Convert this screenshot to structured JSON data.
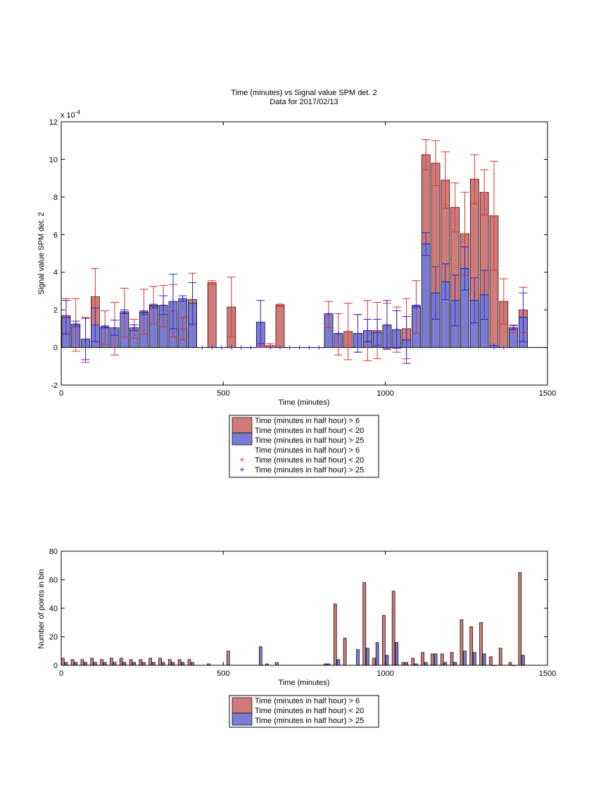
{
  "chart_data": [
    {
      "type": "bar",
      "title": "Time (minutes) vs Signal value SPM det. 2",
      "subtitle": "Data for 2017/02/13",
      "xlabel": "Time (minutes)",
      "ylabel": "Signal value SPM det. 2",
      "y_exponent": "x 10^-4",
      "y_exponent_base": "x 10",
      "y_exponent_power": "-4",
      "xlim": [
        0,
        1500
      ],
      "ylim": [
        -2,
        12
      ],
      "x_ticks": [
        "0",
        "500",
        "1000",
        "1500"
      ],
      "y_ticks": [
        "-2",
        "0",
        "2",
        "4",
        "6",
        "8",
        "10",
        "12"
      ],
      "grid": false,
      "legend_position": "below",
      "colors": {
        "red": "#d07a7a",
        "blue": "#7b7bd4",
        "red_err": "#e03030",
        "blue_err": "#2a2ad0"
      },
      "legend": [
        "Time (minutes in half hour) > 6",
        "Time (minutes in half hour) < 20",
        "Time (minutes in half hour) > 25",
        "Time (minutes in half hour) > 6",
        "Time (minutes in half hour) < 20",
        "Time (minutes in half hour) > 25"
      ],
      "series": [
        {
          "kind": "red-bars",
          "x": [
            15,
            45,
            75,
            105,
            135,
            165,
            195,
            225,
            255,
            285,
            315,
            345,
            375,
            405,
            465,
            525,
            615,
            645,
            675,
            825,
            855,
            885,
            915,
            945,
            975,
            1005,
            1035,
            1065,
            1095,
            1125,
            1155,
            1185,
            1215,
            1245,
            1275,
            1305,
            1335,
            1365,
            1395,
            1425
          ],
          "values": [
            1.7,
            1.2,
            0.4,
            2.7,
            1.05,
            1.0,
            1.85,
            1.0,
            1.9,
            2.25,
            2.2,
            1.95,
            1.0,
            2.55,
            3.45,
            2.15,
            0.1,
            0.1,
            2.25,
            1.75,
            0.7,
            0.85,
            0.75,
            0.9,
            0.9,
            1.15,
            0.95,
            1.0,
            2.15,
            10.25,
            9.8,
            8.9,
            7.45,
            6.05,
            8.95,
            8.25,
            7.0,
            2.45,
            1.0,
            2.0
          ],
          "err": [
            0.9,
            1.4,
            1.2,
            1.5,
            0.9,
            1.4,
            1.3,
            0.5,
            1.2,
            1.0,
            1.1,
            1.4,
            0.6,
            1.4,
            0.1,
            1.6,
            0.1,
            0.1,
            0.05,
            0.7,
            1.1,
            1.5,
            1.0,
            1.6,
            1.5,
            1.2,
            1.2,
            1.6,
            1.4,
            0.8,
            1.2,
            1.5,
            1.3,
            2.2,
            1.3,
            1.2,
            2.9,
            1.2,
            0.2,
            1.2
          ]
        },
        {
          "kind": "blue-bars",
          "x": [
            15,
            45,
            75,
            105,
            135,
            165,
            195,
            225,
            255,
            285,
            315,
            345,
            375,
            405,
            615,
            825,
            855,
            915,
            945,
            975,
            1005,
            1035,
            1065,
            1095,
            1125,
            1155,
            1185,
            1215,
            1245,
            1275,
            1305,
            1335,
            1395,
            1425
          ],
          "values": [
            1.6,
            1.25,
            0.45,
            1.2,
            1.1,
            1.05,
            1.9,
            1.05,
            1.85,
            2.2,
            2.25,
            2.45,
            2.6,
            2.35,
            1.35,
            1.8,
            0.75,
            0.75,
            0.9,
            0.8,
            1.2,
            0.95,
            0.4,
            2.2,
            5.5,
            2.9,
            3.5,
            2.5,
            4.2,
            2.5,
            2.8,
            0.1,
            1.05,
            1.6
          ],
          "err": [
            0.9,
            0.15,
            1.1,
            0.9,
            0.05,
            0.4,
            0.1,
            0.15,
            0.1,
            0.1,
            0.5,
            1.45,
            0.15,
            1.1,
            1.15,
            0.0,
            0.0,
            1.0,
            0.6,
            0.7,
            1.3,
            1.0,
            1.25,
            0.05,
            0.6,
            1.4,
            0.95,
            1.35,
            1.15,
            1.2,
            1.3,
            0.0,
            0.1,
            1.3
          ],
          "zero_markers_x": [
            435,
            465,
            495,
            525,
            555,
            585,
            645,
            675,
            705,
            735,
            765,
            795,
            1335,
            1365
          ]
        }
      ]
    },
    {
      "type": "bar",
      "xlabel": "Time (minutes)",
      "ylabel": "Number of points in bin",
      "xlim": [
        0,
        1500
      ],
      "ylim": [
        0,
        80
      ],
      "x_ticks": [
        "0",
        "500",
        "1000",
        "1500"
      ],
      "y_ticks": [
        "0",
        "20",
        "40",
        "60",
        "80"
      ],
      "grid": false,
      "legend_position": "below",
      "legend": [
        "Time (minutes in half hour) > 6",
        "Time (minutes in half hour) < 20",
        "Time (minutes in half hour) > 25"
      ],
      "series": [
        {
          "kind": "red-bars",
          "x": [
            5,
            35,
            65,
            95,
            125,
            155,
            185,
            215,
            245,
            275,
            305,
            335,
            365,
            395,
            455,
            515,
            605,
            635,
            665,
            815,
            845,
            875,
            905,
            935,
            965,
            995,
            1025,
            1055,
            1085,
            1115,
            1145,
            1175,
            1205,
            1235,
            1265,
            1295,
            1325,
            1355,
            1385,
            1415
          ],
          "values": [
            5,
            4,
            4,
            5,
            4,
            5,
            5,
            4,
            4,
            5,
            5,
            4,
            4,
            4,
            1,
            10,
            0,
            1,
            2,
            1,
            43,
            19,
            0,
            58,
            5,
            35,
            52,
            2,
            5,
            9,
            8,
            8,
            9,
            32,
            27,
            30,
            6,
            12,
            2,
            65
          ],
          "visible_only_when_positive": true
        },
        {
          "kind": "blue-bars",
          "x": [
            15,
            45,
            75,
            105,
            135,
            165,
            195,
            225,
            255,
            285,
            315,
            345,
            375,
            405,
            615,
            825,
            855,
            915,
            945,
            975,
            1005,
            1035,
            1065,
            1095,
            1125,
            1155,
            1185,
            1215,
            1245,
            1275,
            1305,
            1335,
            1395,
            1425
          ],
          "values": [
            2,
            2,
            2,
            2,
            2,
            2,
            2,
            2,
            2,
            2,
            2,
            2,
            2,
            2,
            13,
            1,
            4,
            11,
            12,
            16,
            7,
            16,
            2,
            1,
            2,
            8,
            2,
            2,
            10,
            9,
            8,
            0,
            0,
            7
          ]
        }
      ]
    }
  ]
}
